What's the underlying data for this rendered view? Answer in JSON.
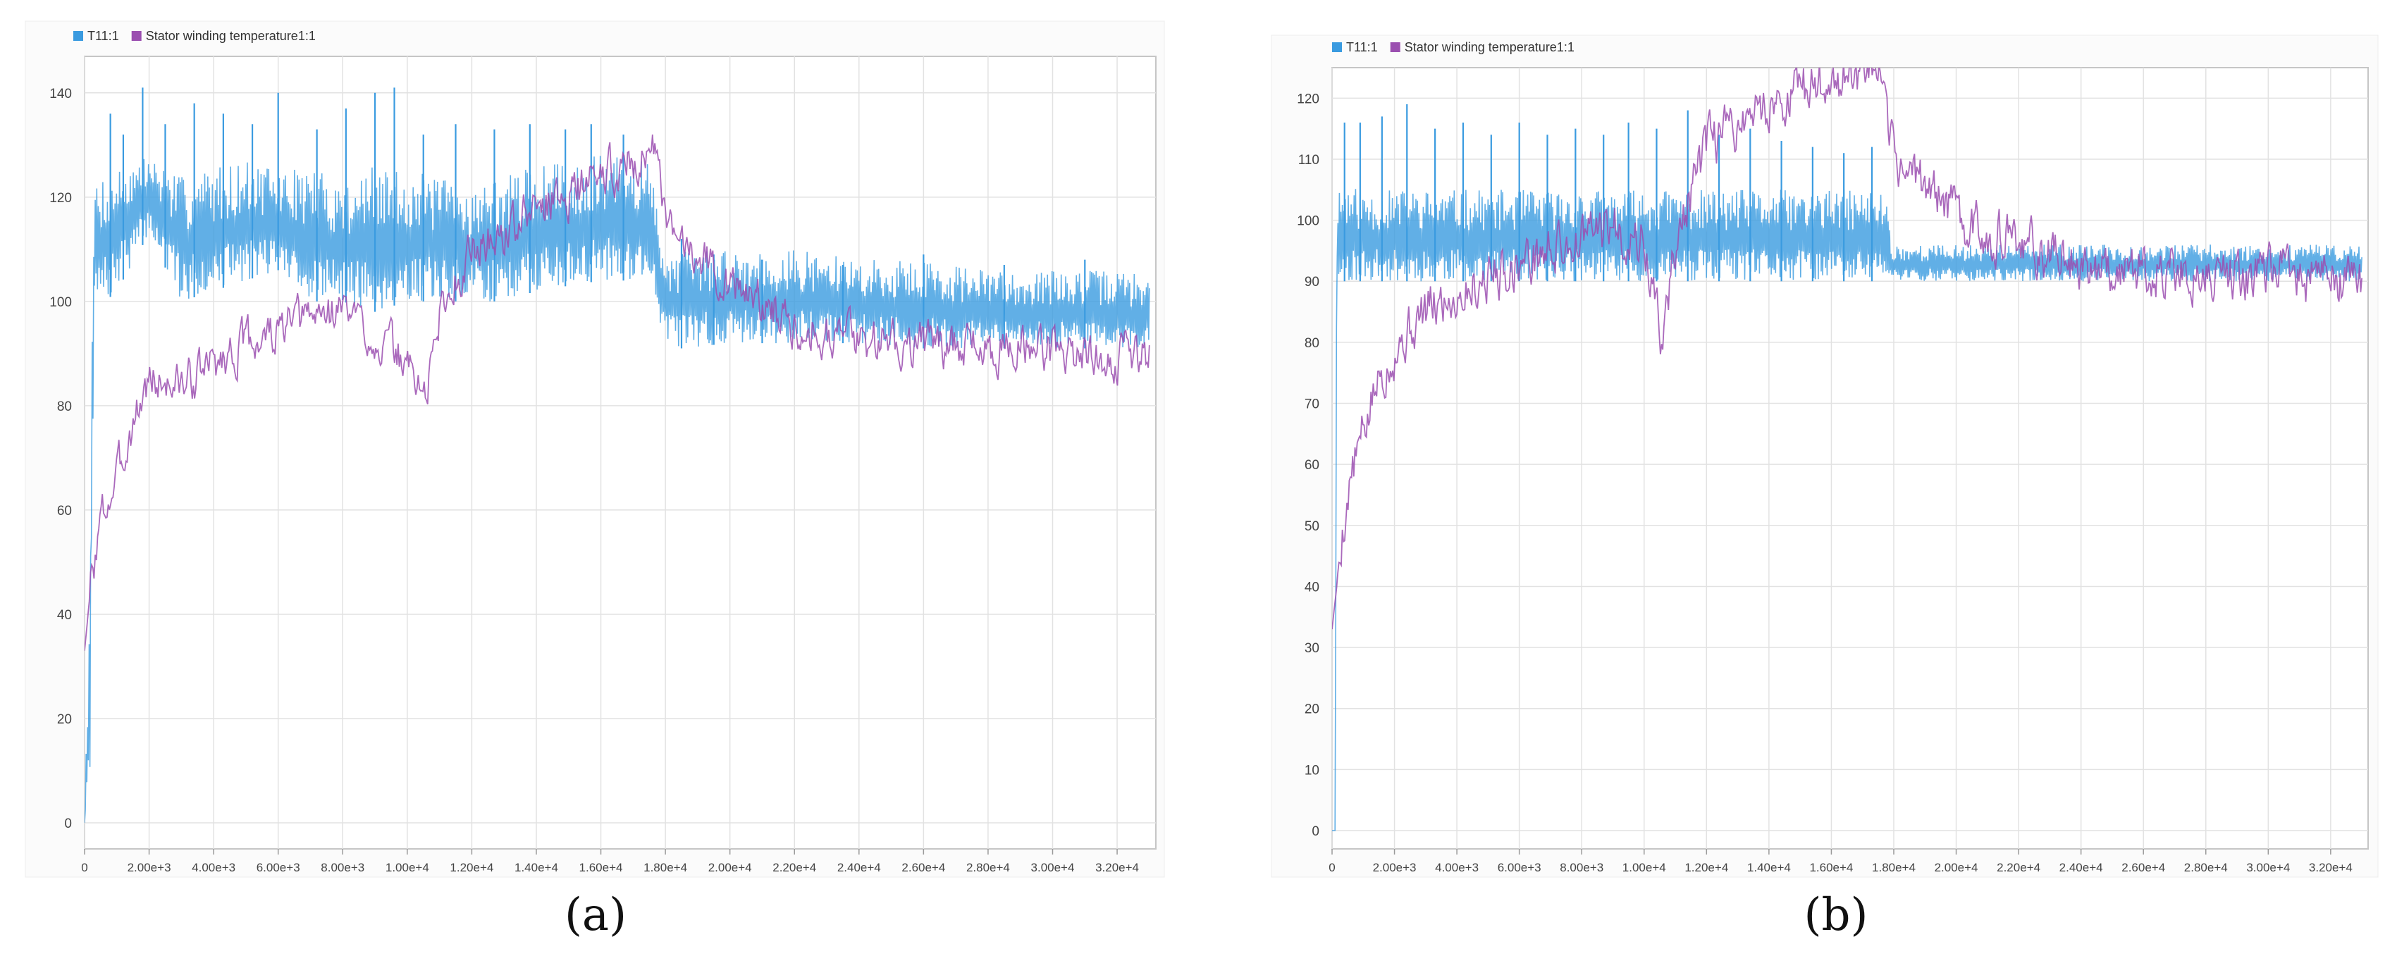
{
  "panels": [
    {
      "label": "(a)"
    },
    {
      "label": "(b)"
    }
  ],
  "colors": {
    "T11": "#3a9be0",
    "stator": "#9b4fb0",
    "grid": "#e2e2e2",
    "frame": "#c6c6c6"
  },
  "chart_data": [
    {
      "type": "line",
      "panel": "(a)",
      "title": "",
      "xlabel": "",
      "ylabel": "",
      "xlim": [
        0,
        33200
      ],
      "ylim": [
        -5,
        147
      ],
      "yticks": [
        0,
        20,
        40,
        60,
        80,
        100,
        120,
        140
      ],
      "xticks": [
        0,
        2000,
        4000,
        6000,
        8000,
        10000,
        12000,
        14000,
        16000,
        18000,
        20000,
        22000,
        24000,
        26000,
        28000,
        30000,
        32000
      ],
      "xtick_labels": [
        "0",
        "2.00e+3",
        "4.00e+3",
        "6.00e+3",
        "8.00e+3",
        "1.00e+4",
        "1.20e+4",
        "1.40e+4",
        "1.60e+4",
        "1.80e+4",
        "2.00e+4",
        "2.20e+4",
        "2.40e+4",
        "2.60e+4",
        "2.80e+4",
        "3.00e+4",
        "3.20e+4"
      ],
      "legend": {
        "position": "top-left"
      },
      "series": [
        {
          "name": "T11:1",
          "style": "band",
          "x": [
            0,
            150,
            300,
            1000,
            2000,
            3000,
            4000,
            5000,
            6000,
            7000,
            8000,
            9000,
            10000,
            11000,
            12000,
            13000,
            14000,
            15000,
            16000,
            17000,
            17500,
            18000,
            18500,
            20000,
            22000,
            24000,
            26000,
            28000,
            30000,
            32000,
            33000
          ],
          "low": [
            0,
            0,
            98,
            102,
            113,
            100,
            102,
            104,
            106,
            100,
            100,
            98,
            100,
            100,
            100,
            100,
            102,
            103,
            104,
            104,
            104,
            92,
            91,
            92,
            92,
            92,
            91,
            91,
            91,
            91,
            91
          ],
          "high": [
            0,
            51,
            124,
            126,
            128,
            124,
            126,
            127,
            125,
            126,
            123,
            126,
            125,
            124,
            122,
            124,
            126,
            127,
            128,
            128,
            127,
            110,
            110,
            110,
            110,
            108,
            108,
            106,
            106,
            106,
            105
          ],
          "peaks": [
            {
              "x": 800,
              "y": 136
            },
            {
              "x": 1200,
              "y": 132
            },
            {
              "x": 1800,
              "y": 141
            },
            {
              "x": 2500,
              "y": 134
            },
            {
              "x": 3400,
              "y": 138
            },
            {
              "x": 4300,
              "y": 136
            },
            {
              "x": 5200,
              "y": 134
            },
            {
              "x": 6000,
              "y": 140
            },
            {
              "x": 7200,
              "y": 133
            },
            {
              "x": 8100,
              "y": 137
            },
            {
              "x": 9000,
              "y": 140
            },
            {
              "x": 9600,
              "y": 141
            },
            {
              "x": 10500,
              "y": 132
            },
            {
              "x": 11500,
              "y": 134
            },
            {
              "x": 12700,
              "y": 133
            },
            {
              "x": 13800,
              "y": 134
            },
            {
              "x": 14900,
              "y": 133
            },
            {
              "x": 15700,
              "y": 134
            },
            {
              "x": 16700,
              "y": 132
            },
            {
              "x": 18500,
              "y": 112
            },
            {
              "x": 19500,
              "y": 109
            },
            {
              "x": 21000,
              "y": 108
            },
            {
              "x": 23500,
              "y": 107
            },
            {
              "x": 26000,
              "y": 109
            },
            {
              "x": 28500,
              "y": 107
            },
            {
              "x": 31000,
              "y": 108
            }
          ]
        },
        {
          "name": "Stator winding temperature1:1",
          "style": "line",
          "x": [
            0,
            200,
            500,
            1000,
            1500,
            2000,
            3000,
            4000,
            5000,
            6000,
            7000,
            8000,
            9000,
            10000,
            10600,
            11000,
            12000,
            13000,
            14000,
            15000,
            16000,
            17000,
            17400,
            17600,
            18000,
            19000,
            20000,
            22000,
            24000,
            26000,
            28000,
            30000,
            32000,
            33000
          ],
          "y": [
            33,
            46,
            58,
            66,
            77,
            85,
            84,
            88,
            92,
            94,
            97,
            99,
            93,
            88,
            82,
            98,
            110,
            113,
            118,
            121,
            124,
            127,
            128,
            133,
            113,
            110,
            103,
            96,
            93,
            92,
            91,
            91,
            89,
            90
          ]
        }
      ]
    },
    {
      "type": "line",
      "panel": "(b)",
      "title": "",
      "xlabel": "",
      "ylabel": "",
      "xlim": [
        0,
        33200
      ],
      "ylim": [
        -3,
        125
      ],
      "yticks": [
        0,
        10,
        20,
        30,
        40,
        50,
        60,
        70,
        80,
        90,
        100,
        110,
        120
      ],
      "xticks": [
        0,
        2000,
        4000,
        6000,
        8000,
        10000,
        12000,
        14000,
        16000,
        18000,
        20000,
        22000,
        24000,
        26000,
        28000,
        30000,
        32000
      ],
      "xtick_labels": [
        "0",
        "2.00e+3",
        "4.00e+3",
        "6.00e+3",
        "8.00e+3",
        "1.00e+4",
        "1.20e+4",
        "1.40e+4",
        "1.60e+4",
        "1.80e+4",
        "2.00e+4",
        "2.20e+4",
        "2.40e+4",
        "2.60e+4",
        "2.80e+4",
        "3.00e+4",
        "3.20e+4"
      ],
      "legend": {
        "position": "top-left"
      },
      "series": [
        {
          "name": "T11:1",
          "style": "band",
          "x": [
            0,
            100,
            150,
            300,
            1000,
            3000,
            6000,
            9000,
            12000,
            15000,
            17800,
            17900,
            20000,
            24000,
            28000,
            32000,
            33000
          ],
          "low": [
            0,
            0,
            90,
            90,
            90,
            90,
            90,
            90,
            90,
            90,
            90,
            90,
            90,
            90,
            90,
            90,
            90
          ],
          "high": [
            0,
            0,
            106,
            106,
            105,
            105,
            105,
            105,
            105,
            105,
            105,
            96,
            96,
            96,
            96,
            96,
            96
          ],
          "peaks": [
            {
              "x": 400,
              "y": 116
            },
            {
              "x": 900,
              "y": 116
            },
            {
              "x": 1600,
              "y": 117
            },
            {
              "x": 2400,
              "y": 119
            },
            {
              "x": 3300,
              "y": 115
            },
            {
              "x": 4200,
              "y": 116
            },
            {
              "x": 5100,
              "y": 114
            },
            {
              "x": 6000,
              "y": 116
            },
            {
              "x": 6900,
              "y": 114
            },
            {
              "x": 7800,
              "y": 115
            },
            {
              "x": 8700,
              "y": 114
            },
            {
              "x": 9500,
              "y": 116
            },
            {
              "x": 10400,
              "y": 115
            },
            {
              "x": 11400,
              "y": 118
            },
            {
              "x": 12400,
              "y": 114
            },
            {
              "x": 13400,
              "y": 115
            },
            {
              "x": 14400,
              "y": 113
            },
            {
              "x": 15400,
              "y": 112
            },
            {
              "x": 16400,
              "y": 111
            },
            {
              "x": 17300,
              "y": 112
            }
          ]
        },
        {
          "name": "Stator winding temperature1:1",
          "style": "line",
          "x": [
            0,
            150,
            300,
            600,
            1000,
            1500,
            2000,
            3000,
            4000,
            5000,
            6000,
            7000,
            8000,
            9000,
            10000,
            10600,
            11000,
            12000,
            13000,
            14000,
            15000,
            16000,
            17000,
            17500,
            18000,
            19000,
            20000,
            21000,
            22000,
            24000,
            26000,
            28000,
            30000,
            32000,
            33000
          ],
          "y": [
            33,
            40,
            48,
            58,
            65,
            74,
            79,
            85,
            88,
            91,
            93,
            95,
            97,
            99,
            96,
            80,
            96,
            112,
            116,
            119,
            121,
            123,
            124,
            123,
            110,
            106,
            101,
            98,
            96,
            93,
            92,
            91,
            91,
            90,
            90
          ]
        }
      ]
    }
  ]
}
